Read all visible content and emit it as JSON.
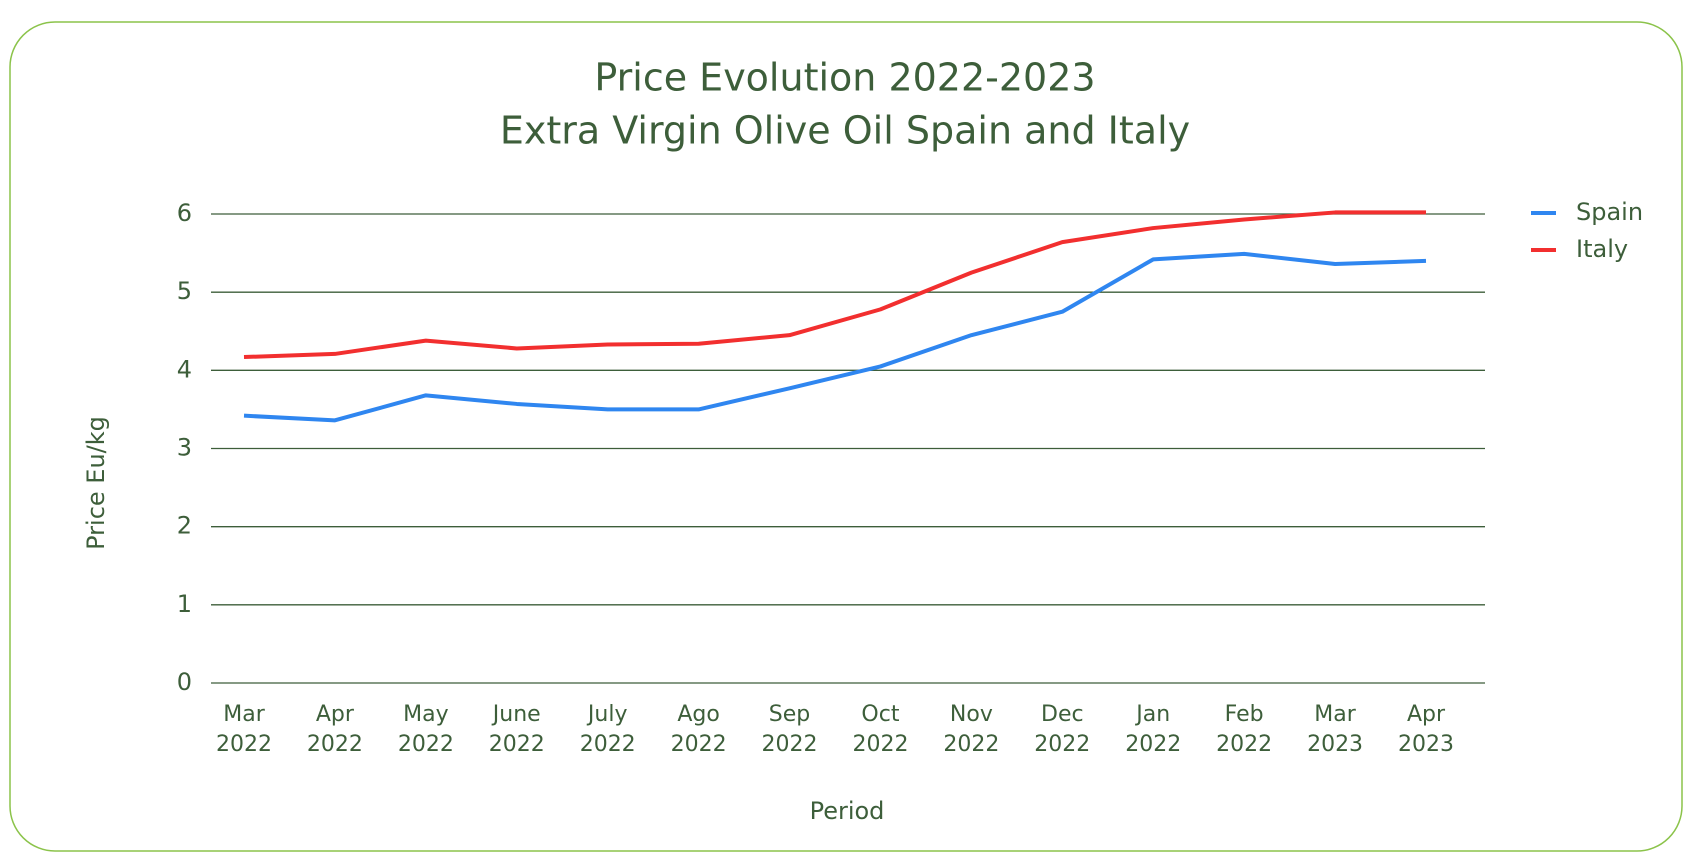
{
  "chart_data": {
    "type": "line",
    "title": "Price Evolution 2022-2023",
    "subtitle": "Extra Virgin Olive Oil Spain and Italy",
    "x_label": "Period",
    "y_label": "Price Eu/kg",
    "categories": [
      "Mar 2022",
      "Apr 2022",
      "May 2022",
      "June 2022",
      "July 2022",
      "Ago 2022",
      "Sep 2022",
      "Oct 2022",
      "Nov 2022",
      "Dec 2022",
      "Jan 2022",
      "Feb 2022",
      "Mar 2023",
      "Apr 2023"
    ],
    "series": [
      {
        "name": "Spain",
        "color": "#2f86f0",
        "values": [
          3.42,
          3.36,
          3.68,
          3.57,
          3.5,
          3.5,
          3.77,
          4.05,
          4.45,
          4.75,
          5.42,
          5.49,
          5.36,
          5.4
        ]
      },
      {
        "name": "Italy",
        "color": "#f22f2f",
        "values": [
          4.17,
          4.21,
          4.38,
          4.28,
          4.33,
          4.34,
          4.45,
          4.78,
          5.25,
          5.64,
          5.82,
          5.93,
          6.02,
          6.02
        ]
      }
    ],
    "ylim": [
      0,
      6
    ],
    "yticks": [
      0,
      1,
      2,
      3,
      4,
      5,
      6
    ],
    "grid": true,
    "legend": "right"
  }
}
